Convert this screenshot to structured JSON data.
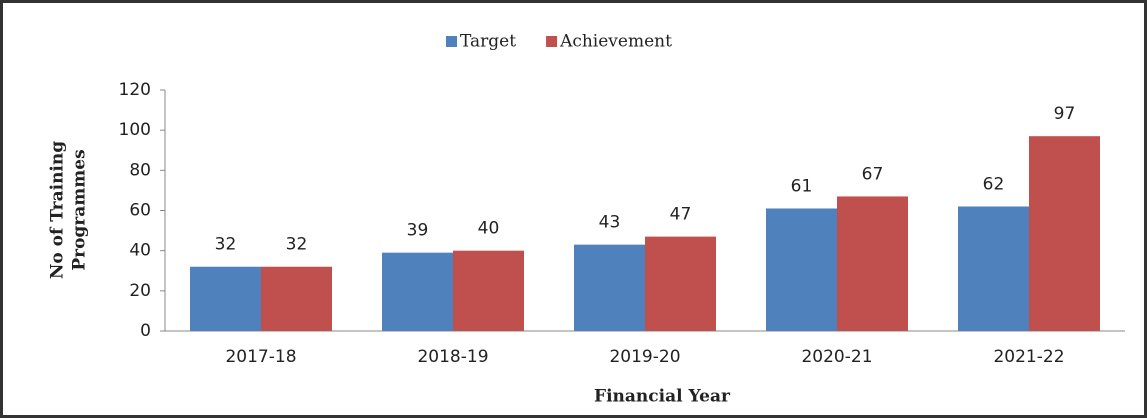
{
  "chart_data": {
    "type": "bar",
    "xlabel": "Financial Year",
    "ylabel": [
      "No of Training",
      "Programmes"
    ],
    "categories": [
      "2017-18",
      "2018-19",
      "2019-20",
      "2020-21",
      "2021-22"
    ],
    "series": [
      {
        "name": "Target",
        "color": "#4f81bd",
        "values": [
          32,
          39,
          43,
          61,
          62
        ]
      },
      {
        "name": "Achievement",
        "color": "#c0504d",
        "values": [
          32,
          40,
          47,
          67,
          97
        ]
      }
    ],
    "ylim": [
      0,
      120
    ],
    "yticks": [
      0,
      20,
      40,
      60,
      80,
      100,
      120
    ],
    "grid": false,
    "legend": "top"
  }
}
